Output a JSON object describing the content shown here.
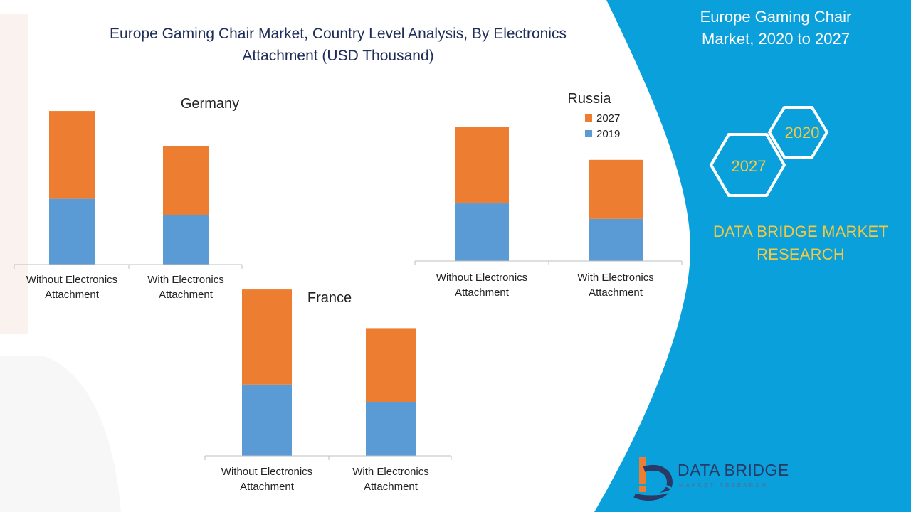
{
  "title": "Europe Gaming Chair Market, Country Level Analysis, By Electronics Attachment (USD Thousand)",
  "side_panel": {
    "title": "Europe Gaming Chair Market, 2020 to 2027",
    "hex_labels": [
      "2020",
      "2027"
    ],
    "brand": "DATA BRIDGE MARKET RESEARCH"
  },
  "logo": {
    "name": "DATA BRIDGE",
    "tagline": "MARKET RESEARCH"
  },
  "colors": {
    "series_2019": "#5b9bd5",
    "series_2027": "#ed7d31",
    "panel": "#0aa0dc",
    "brand_yellow": "#f5c842"
  },
  "chart_data": [
    {
      "type": "bar",
      "stacked": true,
      "title": "Germany",
      "categories": [
        "Without Electronics Attachment",
        "With Electronics Attachment"
      ],
      "series": [
        {
          "name": "2019",
          "values": [
            89,
            67
          ]
        },
        {
          "name": "2027",
          "values": [
            119,
            93
          ]
        }
      ],
      "ylim": [
        0,
        210
      ]
    },
    {
      "type": "bar",
      "stacked": true,
      "title": "Russia",
      "categories": [
        "Without Electronics Attachment",
        "With Electronics Attachment"
      ],
      "series": [
        {
          "name": "2019",
          "values": [
            78,
            57
          ]
        },
        {
          "name": "2027",
          "values": [
            104,
            80
          ]
        }
      ],
      "legend": [
        "2027",
        "2019"
      ],
      "ylim": [
        0,
        185
      ]
    },
    {
      "type": "bar",
      "stacked": true,
      "title": "France",
      "categories": [
        "Without Electronics Attachment",
        "With Electronics Attachment"
      ],
      "series": [
        {
          "name": "2019",
          "values": [
            96,
            72
          ]
        },
        {
          "name": "2027",
          "values": [
            128,
            100
          ]
        }
      ],
      "ylim": [
        0,
        226
      ]
    }
  ]
}
